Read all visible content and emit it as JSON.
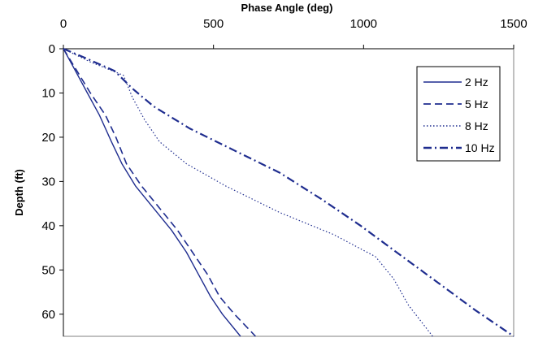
{
  "chart_data": {
    "type": "line",
    "title": "",
    "xlabel": "Phase Angle (deg)",
    "ylabel": "Depth (ft)",
    "x_axis_position": "top",
    "y_axis_inverted": true,
    "xlim": [
      0,
      1500
    ],
    "ylim": [
      0,
      65
    ],
    "xticks": [
      "0",
      "500",
      "1000",
      "1500"
    ],
    "yticks": [
      "0",
      "10",
      "20",
      "30",
      "40",
      "50",
      "60"
    ],
    "grid": false,
    "legend_position": "top-right",
    "series": [
      {
        "name": "2 Hz",
        "color": "#1f2d8f",
        "dash": "solid",
        "points": [
          [
            0,
            0
          ],
          [
            40,
            5
          ],
          [
            80,
            10
          ],
          [
            120,
            15
          ],
          [
            160,
            21
          ],
          [
            195,
            26
          ],
          [
            240,
            31
          ],
          [
            300,
            36
          ],
          [
            360,
            41
          ],
          [
            410,
            46
          ],
          [
            450,
            51
          ],
          [
            490,
            56
          ],
          [
            530,
            60
          ],
          [
            590,
            65
          ]
        ]
      },
      {
        "name": "5 Hz",
        "color": "#1f2d8f",
        "dash": "dash",
        "points": [
          [
            0,
            0
          ],
          [
            45,
            5
          ],
          [
            90,
            10
          ],
          [
            140,
            15
          ],
          [
            175,
            20
          ],
          [
            210,
            26
          ],
          [
            260,
            31
          ],
          [
            320,
            36
          ],
          [
            380,
            41
          ],
          [
            430,
            46
          ],
          [
            480,
            51
          ],
          [
            520,
            56
          ],
          [
            570,
            60
          ],
          [
            640,
            65
          ]
        ]
      },
      {
        "name": "8 Hz",
        "color": "#1f2d8f",
        "dash": "dot",
        "points": [
          [
            0,
            0
          ],
          [
            90,
            3
          ],
          [
            200,
            6
          ],
          [
            230,
            11
          ],
          [
            270,
            16
          ],
          [
            320,
            21
          ],
          [
            410,
            26
          ],
          [
            540,
            31
          ],
          [
            720,
            37
          ],
          [
            900,
            42
          ],
          [
            1040,
            47
          ],
          [
            1100,
            52
          ],
          [
            1150,
            58
          ],
          [
            1230,
            65
          ]
        ]
      },
      {
        "name": "10 Hz",
        "color": "#1f2d8f",
        "dash": "dashdot",
        "points": [
          [
            0,
            0
          ],
          [
            70,
            2
          ],
          [
            170,
            5
          ],
          [
            230,
            9
          ],
          [
            300,
            13
          ],
          [
            420,
            18
          ],
          [
            570,
            23
          ],
          [
            720,
            28
          ],
          [
            860,
            34
          ],
          [
            990,
            40
          ],
          [
            1130,
            47
          ],
          [
            1250,
            53
          ],
          [
            1370,
            59
          ],
          [
            1500,
            65
          ]
        ]
      }
    ]
  }
}
